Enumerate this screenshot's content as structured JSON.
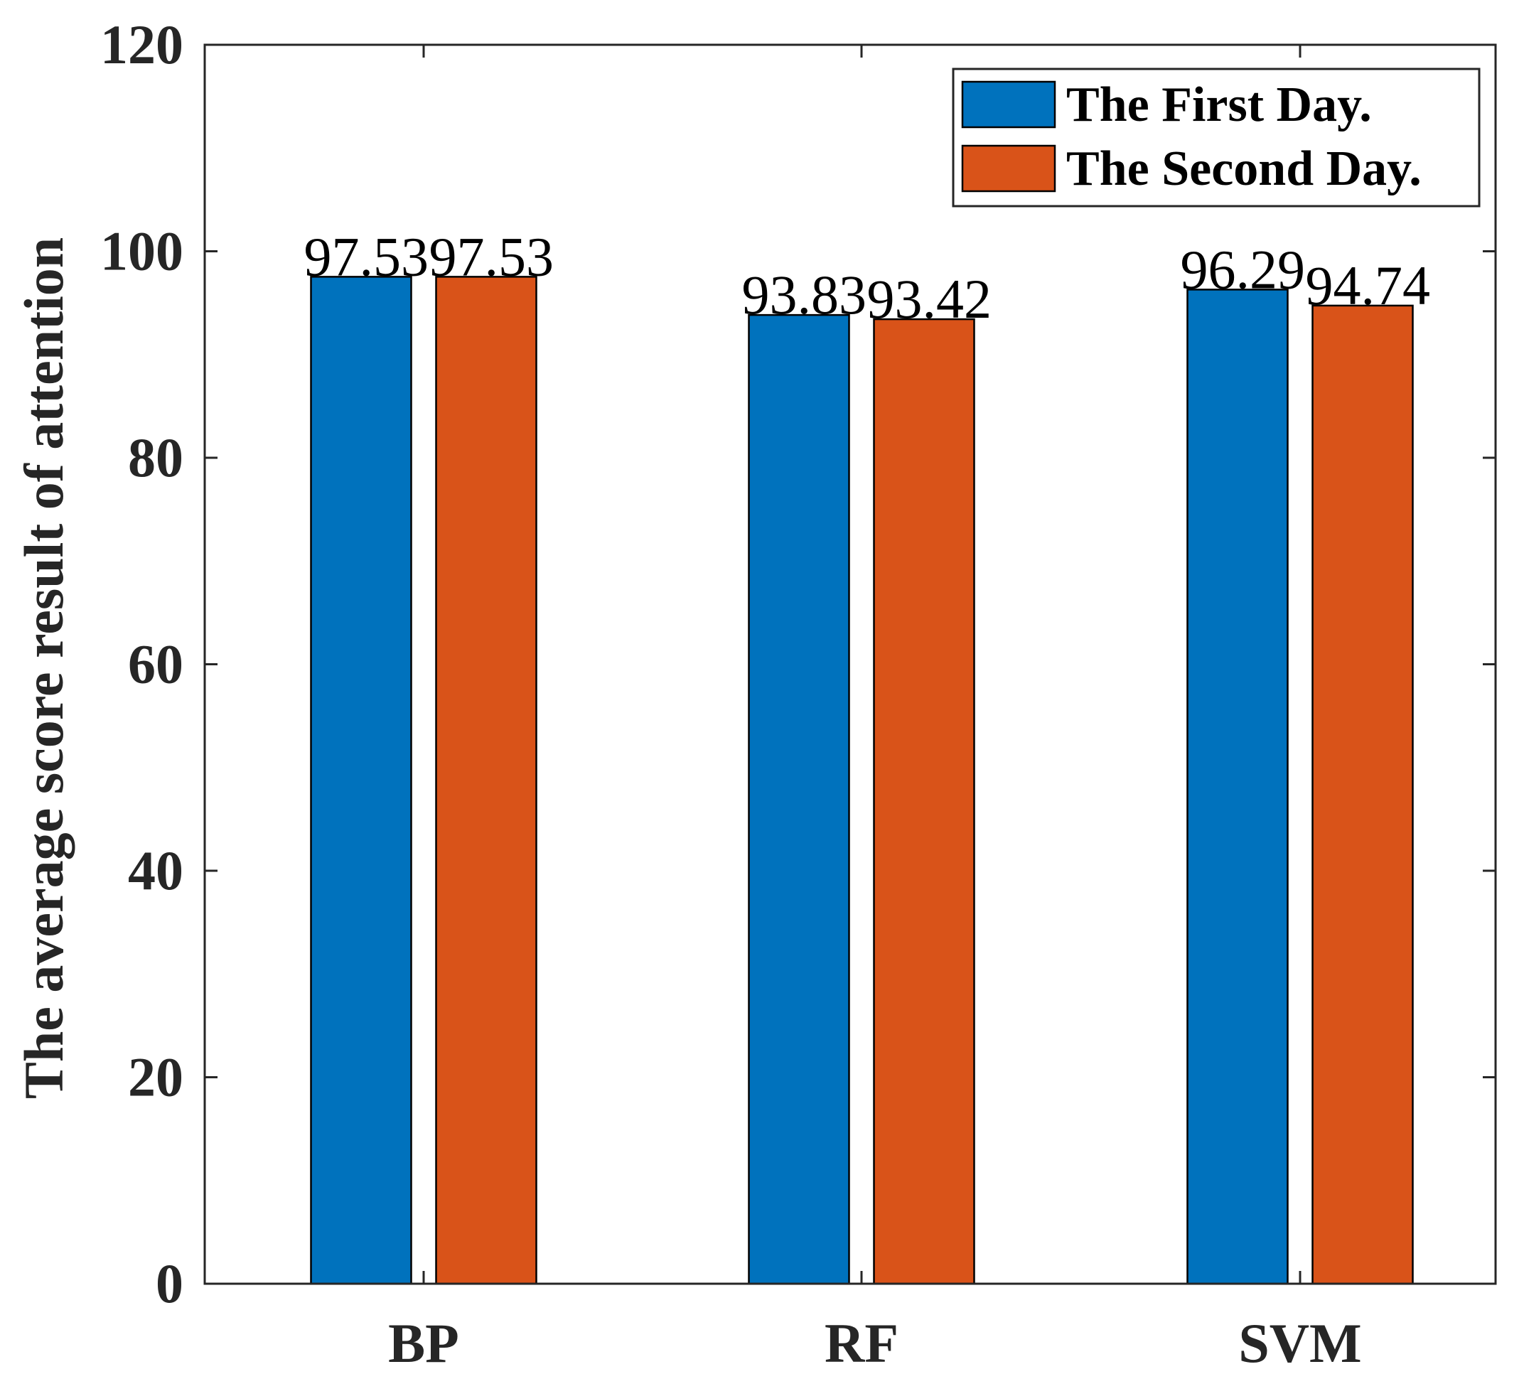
{
  "chart_data": {
    "type": "bar",
    "title": "",
    "xlabel": "",
    "ylabel": "The average score result of attention",
    "categories": [
      "BP",
      "RF",
      "SVM"
    ],
    "series": [
      {
        "name": "The First Day.",
        "color": "#0072BD",
        "values": [
          97.53,
          93.83,
          96.29
        ],
        "labels": [
          "97.53",
          "93.83",
          "96.29"
        ]
      },
      {
        "name": "The Second Day.",
        "color": "#D95319",
        "values": [
          97.53,
          93.42,
          94.74
        ],
        "labels": [
          "97.53",
          "93.42",
          "94.74"
        ]
      }
    ],
    "ylim": [
      0,
      120
    ],
    "yticks": [
      0,
      20,
      40,
      60,
      80,
      100,
      120
    ],
    "ytick_labels": [
      "0",
      "20",
      "40",
      "60",
      "80",
      "100",
      "120"
    ],
    "grid": false,
    "legend_position": "top-right"
  }
}
